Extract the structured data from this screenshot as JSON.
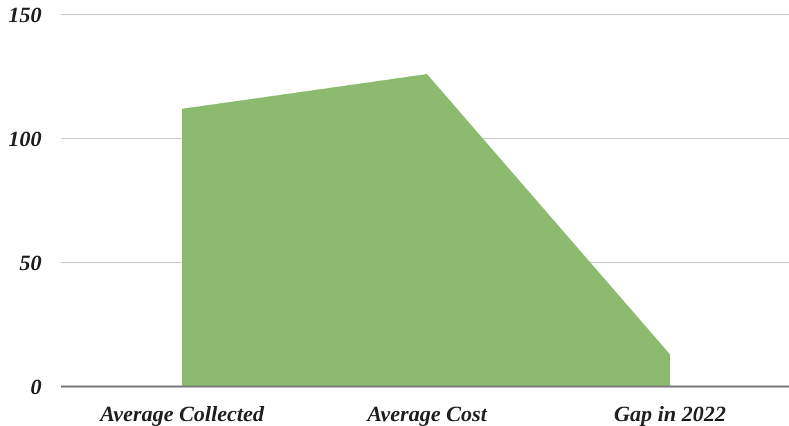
{
  "chart_data": {
    "type": "area",
    "title": "",
    "xlabel": "",
    "ylabel": "",
    "categories": [
      "Average Collected",
      "Average Cost",
      "Gap in 2022"
    ],
    "series": [
      {
        "values": [
          112,
          126,
          13
        ]
      }
    ],
    "ylim": [
      0,
      150
    ],
    "yticks": [
      0,
      50,
      100,
      150
    ],
    "ytick_labels": [
      "0",
      "50",
      "100",
      "150"
    ],
    "grid": true,
    "legend": "none",
    "colors": {
      "fill": "#8cbb70",
      "grid": "#d0d0d0",
      "baseline": "#808080"
    }
  }
}
